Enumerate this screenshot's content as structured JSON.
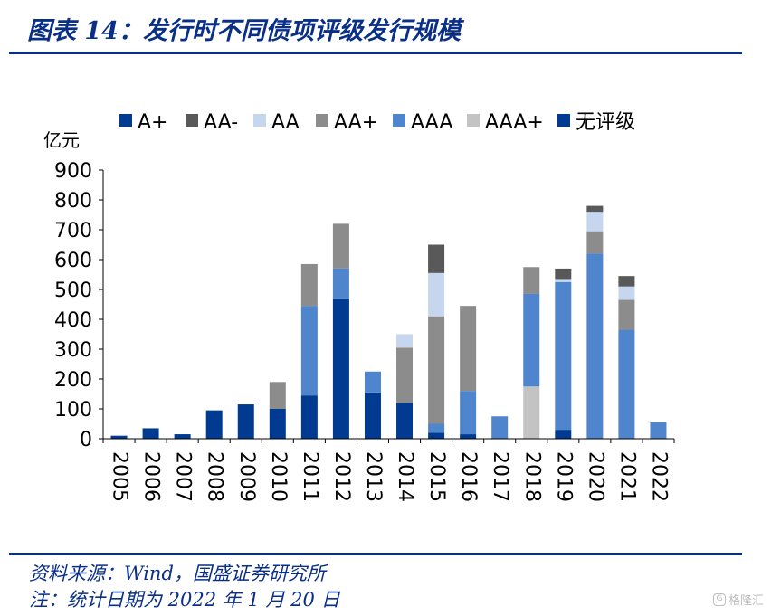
{
  "title": "图表 14：发行时不同债项评级发行规模",
  "source": "资料来源：Wind，国盛证券研究所",
  "note": "注：统计日期为 2022 年 1 月 20 日",
  "watermark": {
    "icon": "G",
    "text": "格隆汇"
  },
  "chart_data": {
    "type": "bar",
    "stacked": true,
    "unit_label": "亿元",
    "ylim": [
      0,
      900
    ],
    "yticks": [
      0,
      100,
      200,
      300,
      400,
      500,
      600,
      700,
      800,
      900
    ],
    "grid": false,
    "legend_position": "top",
    "categories": [
      "2005",
      "2006",
      "2007",
      "2008",
      "2009",
      "2010",
      "2011",
      "2012",
      "2013",
      "2014",
      "2015",
      "2016",
      "2017",
      "2018",
      "2019",
      "2020",
      "2021",
      "2022"
    ],
    "series": [
      {
        "name": "A+",
        "color": "#003b91",
        "values": [
          0,
          0,
          0,
          0,
          0,
          0,
          0,
          0,
          0,
          0,
          0,
          0,
          0,
          0,
          0,
          0,
          0,
          0
        ]
      },
      {
        "name": "AA-",
        "color": "#595959",
        "values": [
          0,
          0,
          0,
          0,
          0,
          0,
          0,
          0,
          0,
          0,
          95,
          0,
          0,
          0,
          35,
          20,
          35,
          0
        ]
      },
      {
        "name": "AA",
        "color": "#c5d6ee",
        "values": [
          0,
          0,
          0,
          0,
          0,
          0,
          0,
          0,
          0,
          45,
          145,
          0,
          0,
          0,
          10,
          65,
          45,
          0
        ]
      },
      {
        "name": "AA+",
        "color": "#8c8c8c",
        "values": [
          0,
          0,
          0,
          0,
          0,
          90,
          140,
          150,
          0,
          185,
          360,
          285,
          0,
          90,
          0,
          75,
          100,
          0
        ]
      },
      {
        "name": "AAA",
        "color": "#4f85cc",
        "values": [
          0,
          0,
          0,
          0,
          0,
          0,
          300,
          100,
          70,
          0,
          30,
          145,
          75,
          310,
          495,
          620,
          365,
          55
        ]
      },
      {
        "name": "AAA+",
        "color": "#c3c3c3",
        "values": [
          0,
          0,
          0,
          0,
          0,
          0,
          0,
          0,
          0,
          0,
          0,
          0,
          0,
          175,
          0,
          0,
          0,
          0
        ]
      },
      {
        "name": "无评级",
        "color": "#003b91",
        "values": [
          10,
          35,
          15,
          95,
          115,
          100,
          145,
          470,
          155,
          120,
          20,
          15,
          0,
          0,
          30,
          0,
          0,
          0
        ]
      }
    ]
  }
}
